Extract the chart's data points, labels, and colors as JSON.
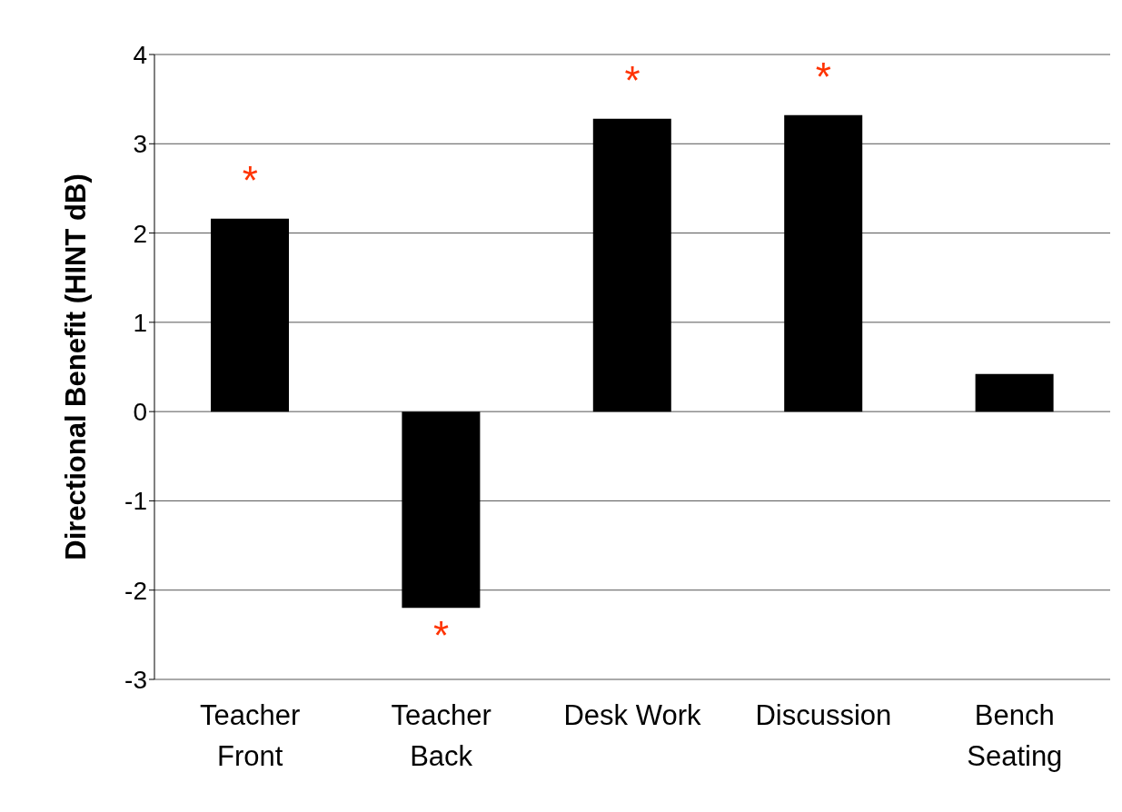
{
  "chart_data": {
    "type": "bar",
    "ylabel": "Directional Benefit (HINT dB)",
    "categories": [
      "Teacher Front",
      "Teacher Back",
      "Desk Work",
      "Discussion",
      "Bench Seating"
    ],
    "values": [
      2.16,
      -2.2,
      3.28,
      3.32,
      0.42
    ],
    "color": "#000000",
    "ylim": [
      -3,
      4
    ],
    "yticks": [
      -3,
      -2,
      -1,
      0,
      1,
      2,
      3,
      4
    ],
    "grid": "y",
    "annotations": [
      {
        "text": "*",
        "x": "Teacher Front",
        "y": 2.16
      },
      {
        "text": "*",
        "x": "Teacher Back",
        "y": -2.2
      },
      {
        "text": "*",
        "x": "Desk Work",
        "y": 3.28
      },
      {
        "text": "*",
        "x": "Discussion",
        "y": 3.32
      }
    ]
  }
}
